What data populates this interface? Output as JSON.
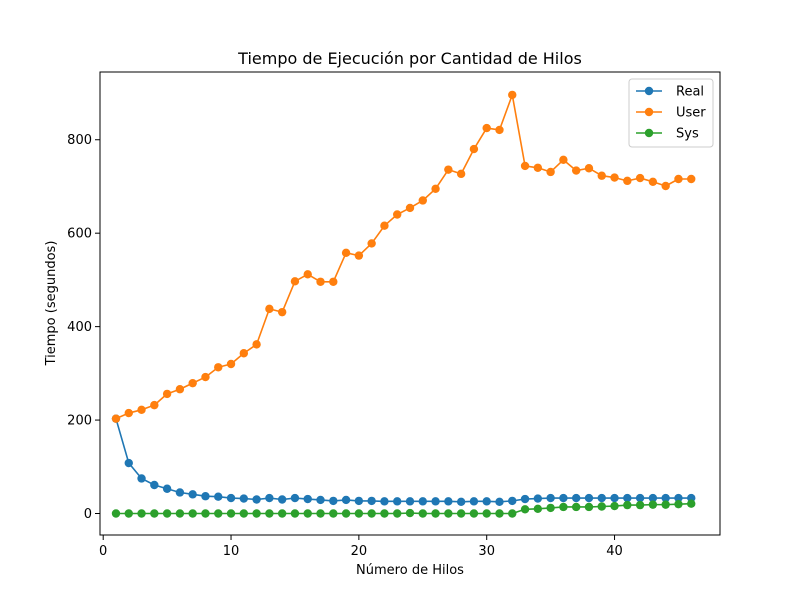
{
  "chart_data": {
    "type": "line",
    "title": "Tiempo de Ejecución por Cantidad de Hilos",
    "xlabel": "Número de Hilos",
    "ylabel": "Tiempo (segundos)",
    "xlim": [
      -0.25,
      48.25
    ],
    "ylim": [
      -46,
      945
    ],
    "x_ticks": [
      0,
      10,
      20,
      30,
      40
    ],
    "y_ticks": [
      0,
      200,
      400,
      600,
      800
    ],
    "x_tick_labels": [
      "0",
      "10",
      "20",
      "30",
      "40"
    ],
    "y_tick_labels": [
      "0",
      "200",
      "400",
      "600",
      "800"
    ],
    "grid": false,
    "legend_position": "top-right",
    "x": [
      1,
      2,
      3,
      4,
      5,
      6,
      7,
      8,
      9,
      10,
      11,
      12,
      13,
      14,
      15,
      16,
      17,
      18,
      19,
      20,
      21,
      22,
      23,
      24,
      25,
      26,
      27,
      28,
      29,
      30,
      31,
      32,
      33,
      34,
      35,
      36,
      37,
      38,
      39,
      40,
      41,
      42,
      43,
      44,
      45,
      46
    ],
    "series": [
      {
        "name": "Real",
        "color": "#1f77b4",
        "values": [
          203,
          108,
          75,
          61,
          53,
          45,
          41,
          37,
          36,
          33,
          32,
          30,
          33,
          30,
          33,
          31,
          29,
          27,
          29,
          27,
          27,
          26,
          26,
          26,
          26,
          26,
          26,
          25,
          26,
          26,
          25,
          27,
          31,
          32,
          33,
          33,
          33,
          33,
          33,
          33,
          33,
          33,
          33,
          33,
          33,
          33
        ]
      },
      {
        "name": "User",
        "color": "#ff7f0e",
        "values": [
          203,
          215,
          222,
          232,
          256,
          266,
          279,
          292,
          313,
          320,
          343,
          362,
          438,
          431,
          497,
          512,
          496,
          496,
          558,
          552,
          578,
          616,
          640,
          654,
          670,
          695,
          736,
          727,
          780,
          825,
          821,
          896,
          744,
          740,
          731,
          757,
          734,
          739,
          723,
          719,
          712,
          718,
          710,
          701,
          716,
          716
        ]
      },
      {
        "name": "Sys",
        "color": "#2ca02c",
        "values": [
          0,
          0,
          0,
          0,
          0,
          0,
          0,
          0,
          0,
          0,
          0,
          0,
          0,
          0,
          0,
          0,
          0,
          0,
          0,
          0,
          0,
          0,
          0,
          1,
          0,
          0,
          0,
          0,
          0,
          0,
          0,
          0,
          9,
          10,
          12,
          14,
          14,
          14,
          15,
          16,
          18,
          18,
          19,
          19,
          20,
          21
        ]
      }
    ]
  }
}
